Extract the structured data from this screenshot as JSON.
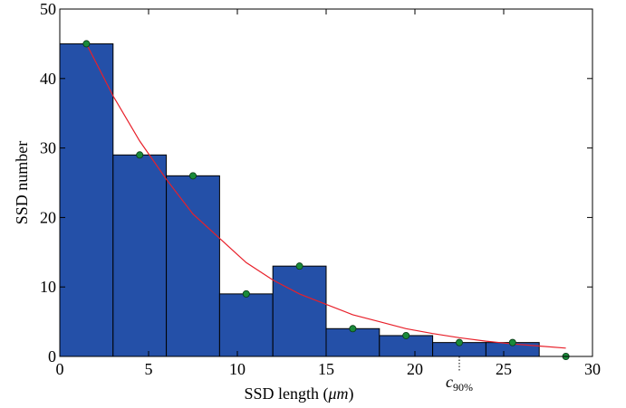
{
  "chart_data": {
    "type": "bar",
    "xlabel": "SSD length (μm)",
    "xlabel_parts": {
      "prefix": "SSD length (",
      "symbol": "μm",
      "suffix": ")"
    },
    "ylabel": "SSD number",
    "xlim": [
      0,
      30
    ],
    "ylim": [
      0,
      50
    ],
    "xticks": [
      "0",
      "5",
      "10",
      "15",
      "20",
      "25",
      "30"
    ],
    "yticks": [
      "0",
      "10",
      "20",
      "30",
      "40",
      "50"
    ],
    "grid": false,
    "bin_edges": [
      0,
      3,
      6,
      9,
      12,
      15,
      18,
      21,
      24,
      27
    ],
    "bars": [
      45,
      29,
      26,
      9,
      13,
      4,
      3,
      2,
      2
    ],
    "bar_color": "#2450a8",
    "markers": {
      "x": [
        1.5,
        4.5,
        7.5,
        10.5,
        13.5,
        16.5,
        19.5,
        22.5,
        25.5,
        28.5
      ],
      "y": [
        45,
        29,
        26,
        9,
        13,
        4,
        3,
        2,
        2,
        0
      ],
      "color": "#1a8a3a"
    },
    "fit_curve": {
      "color": "#e8202a",
      "x": [
        1.5,
        3.0,
        4.5,
        6.0,
        7.5,
        9.0,
        10.5,
        12.0,
        13.5,
        15.0,
        16.5,
        18.0,
        19.5,
        21.0,
        22.5,
        24.0,
        25.5,
        27.0,
        28.5
      ],
      "y": [
        45,
        37.5,
        31,
        25.5,
        20.5,
        17,
        13.5,
        11,
        9,
        7.5,
        6,
        5,
        4,
        3.3,
        2.7,
        2.2,
        1.8,
        1.5,
        1.2
      ]
    },
    "annotation": {
      "x": 22.5,
      "label_base": "c",
      "label_sub": "90%"
    }
  }
}
